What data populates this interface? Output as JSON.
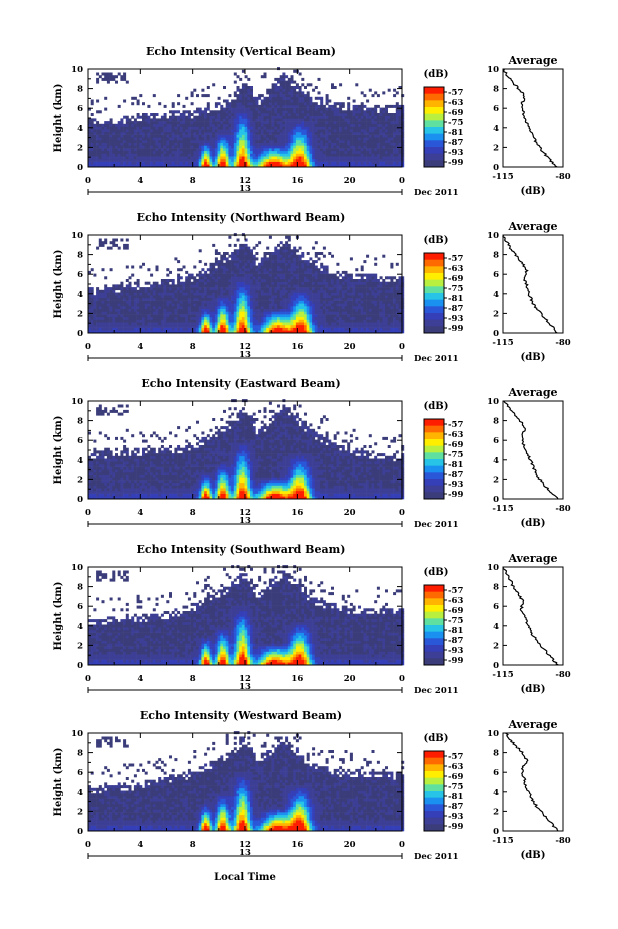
{
  "chart_data": {
    "type": "heatmap",
    "x_axis": {
      "ticks": [
        "0",
        "4",
        "8",
        "12",
        "16",
        "20",
        "0"
      ],
      "date_label": "13",
      "suffix_label": "Dec 2011",
      "xlabel": "Local Time",
      "xlim": [
        0,
        24
      ]
    },
    "y_axis": {
      "ylabel": "Height (km)",
      "ticks": [
        "0",
        "2",
        "4",
        "6",
        "8",
        "10"
      ],
      "ylim": [
        0,
        10
      ]
    },
    "colorbar": {
      "unit": "(dB)",
      "ticks": [
        "-57",
        "-63",
        "-69",
        "-75",
        "-81",
        "-87",
        "-93",
        "-99"
      ],
      "colors": [
        "#ff1d00",
        "#ff6a00",
        "#ffb400",
        "#ffee00",
        "#b9f040",
        "#5fe0a0",
        "#27c4e8",
        "#1a90f0",
        "#2a56d8",
        "#353fb8",
        "#3c3f95",
        "#3b3c7a"
      ]
    },
    "avg_panel": {
      "title": "Average",
      "xlabel": "(dB)",
      "xticks": [
        "-115",
        "-80"
      ],
      "xlim": [
        -115,
        -80
      ],
      "yticks": [
        "0",
        "2",
        "4",
        "6",
        "8",
        "10"
      ]
    },
    "panels": [
      {
        "title": "Echo Intensity (Vertical Beam)",
        "cloud_top": [
          [
            0,
            4.9
          ],
          [
            2,
            5.1
          ],
          [
            4,
            5.4
          ],
          [
            6,
            5.6
          ],
          [
            8,
            5.8
          ],
          [
            11,
            7.0
          ],
          [
            12,
            9.5
          ],
          [
            13,
            7.0
          ],
          [
            15,
            9.6
          ],
          [
            17,
            7.4
          ],
          [
            19,
            6.6
          ],
          [
            21,
            6.4
          ],
          [
            24,
            6.2
          ]
        ],
        "cores": [
          [
            9.0,
            1.8,
            0.4
          ],
          [
            10.3,
            2.5,
            0.5
          ],
          [
            11.8,
            4.0,
            0.6
          ],
          [
            14.2,
            1.6,
            1.2
          ],
          [
            16.2,
            3.2,
            0.8
          ]
        ],
        "avg_profile": [
          [
            -84,
            0
          ],
          [
            -88,
            0.8
          ],
          [
            -92,
            1.6
          ],
          [
            -95,
            2.4
          ],
          [
            -98,
            3.2
          ],
          [
            -100,
            4.0
          ],
          [
            -102,
            4.8
          ],
          [
            -103,
            5.6
          ],
          [
            -104,
            6.4
          ],
          [
            -102,
            7.2
          ],
          [
            -106,
            8.0
          ],
          [
            -109,
            8.6
          ],
          [
            -112,
            9.2
          ],
          [
            -114,
            9.8
          ]
        ]
      },
      {
        "title": "Echo Intensity (Northward Beam)",
        "cloud_top": [
          [
            0,
            4.6
          ],
          [
            2,
            4.8
          ],
          [
            4,
            5.2
          ],
          [
            6,
            5.5
          ],
          [
            8,
            6.0
          ],
          [
            11,
            8.2
          ],
          [
            12,
            9.8
          ],
          [
            13,
            7.2
          ],
          [
            15,
            9.8
          ],
          [
            17,
            7.6
          ],
          [
            19,
            6.4
          ],
          [
            21,
            6.0
          ],
          [
            24,
            5.8
          ]
        ],
        "cores": [
          [
            9.0,
            1.8,
            0.4
          ],
          [
            10.3,
            2.6,
            0.5
          ],
          [
            11.8,
            3.8,
            0.6
          ],
          [
            14.5,
            1.7,
            1.1
          ],
          [
            16.3,
            3.0,
            0.8
          ]
        ],
        "avg_profile": [
          [
            -83,
            0
          ],
          [
            -87,
            0.8
          ],
          [
            -91,
            1.6
          ],
          [
            -95,
            2.4
          ],
          [
            -98,
            3.2
          ],
          [
            -100,
            4.0
          ],
          [
            -101,
            4.8
          ],
          [
            -103,
            5.6
          ],
          [
            -101,
            6.4
          ],
          [
            -104,
            7.2
          ],
          [
            -108,
            8.0
          ],
          [
            -111,
            8.8
          ],
          [
            -113,
            9.4
          ],
          [
            -115,
            10
          ]
        ]
      },
      {
        "title": "Echo Intensity (Eastward Beam)",
        "cloud_top": [
          [
            0,
            4.8
          ],
          [
            2,
            5.0
          ],
          [
            4,
            5.2
          ],
          [
            6,
            5.4
          ],
          [
            8,
            5.6
          ],
          [
            11,
            8.0
          ],
          [
            12,
            9.8
          ],
          [
            13,
            7.0
          ],
          [
            15,
            9.6
          ],
          [
            17,
            7.2
          ],
          [
            19,
            5.8
          ],
          [
            21,
            4.9
          ],
          [
            24,
            4.6
          ]
        ],
        "cores": [
          [
            9.0,
            1.8,
            0.4
          ],
          [
            10.3,
            2.5,
            0.5
          ],
          [
            11.8,
            3.9,
            0.6
          ],
          [
            14.3,
            1.5,
            1.2
          ],
          [
            16.2,
            3.1,
            0.8
          ]
        ],
        "avg_profile": [
          [
            -83,
            0
          ],
          [
            -88,
            0.8
          ],
          [
            -92,
            1.6
          ],
          [
            -95,
            2.4
          ],
          [
            -97,
            3.2
          ],
          [
            -99,
            4.0
          ],
          [
            -101,
            4.8
          ],
          [
            -103,
            5.6
          ],
          [
            -104,
            6.4
          ],
          [
            -102,
            7.2
          ],
          [
            -105,
            8.0
          ],
          [
            -109,
            8.8
          ],
          [
            -112,
            9.4
          ],
          [
            -114,
            10
          ]
        ]
      },
      {
        "title": "Echo Intensity (Southward Beam)",
        "cloud_top": [
          [
            0,
            4.7
          ],
          [
            2,
            5.0
          ],
          [
            4,
            5.2
          ],
          [
            6,
            5.4
          ],
          [
            8,
            6.2
          ],
          [
            11,
            8.4
          ],
          [
            12,
            9.8
          ],
          [
            13,
            7.4
          ],
          [
            15,
            9.8
          ],
          [
            17,
            7.0
          ],
          [
            19,
            6.2
          ],
          [
            21,
            5.9
          ],
          [
            24,
            5.8
          ]
        ],
        "cores": [
          [
            9.0,
            1.9,
            0.4
          ],
          [
            10.3,
            2.6,
            0.5
          ],
          [
            11.8,
            4.0,
            0.6
          ],
          [
            14.3,
            1.5,
            1.2
          ],
          [
            16.2,
            3.0,
            0.8
          ]
        ],
        "avg_profile": [
          [
            -83,
            0
          ],
          [
            -87,
            0.8
          ],
          [
            -91,
            1.6
          ],
          [
            -95,
            2.4
          ],
          [
            -98,
            3.2
          ],
          [
            -100,
            4.0
          ],
          [
            -102,
            4.8
          ],
          [
            -105,
            5.6
          ],
          [
            -103,
            6.4
          ],
          [
            -106,
            7.2
          ],
          [
            -109,
            8.0
          ],
          [
            -111,
            8.8
          ],
          [
            -113,
            9.4
          ],
          [
            -115,
            10
          ]
        ]
      },
      {
        "title": "Echo Intensity (Westward Beam)",
        "cloud_top": [
          [
            0,
            4.4
          ],
          [
            2,
            4.8
          ],
          [
            4,
            5.0
          ],
          [
            6,
            5.6
          ],
          [
            8,
            6.2
          ],
          [
            11,
            8.2
          ],
          [
            12,
            9.8
          ],
          [
            13,
            7.4
          ],
          [
            15,
            9.8
          ],
          [
            17,
            7.0
          ],
          [
            19,
            6.2
          ],
          [
            21,
            6.2
          ],
          [
            24,
            6.0
          ]
        ],
        "cores": [
          [
            9.0,
            1.9,
            0.4
          ],
          [
            10.3,
            2.6,
            0.5
          ],
          [
            11.8,
            4.0,
            0.6
          ],
          [
            14.5,
            1.6,
            1.2
          ],
          [
            16.2,
            3.2,
            0.8
          ]
        ],
        "avg_profile": [
          [
            -83,
            0
          ],
          [
            -87,
            0.8
          ],
          [
            -91,
            1.6
          ],
          [
            -95,
            2.4
          ],
          [
            -98,
            3.2
          ],
          [
            -100,
            4.0
          ],
          [
            -102,
            4.8
          ],
          [
            -103,
            5.6
          ],
          [
            -104,
            6.4
          ],
          [
            -101,
            7.2
          ],
          [
            -104,
            8.0
          ],
          [
            -108,
            8.8
          ],
          [
            -111,
            9.4
          ],
          [
            -113,
            10
          ]
        ]
      }
    ]
  }
}
